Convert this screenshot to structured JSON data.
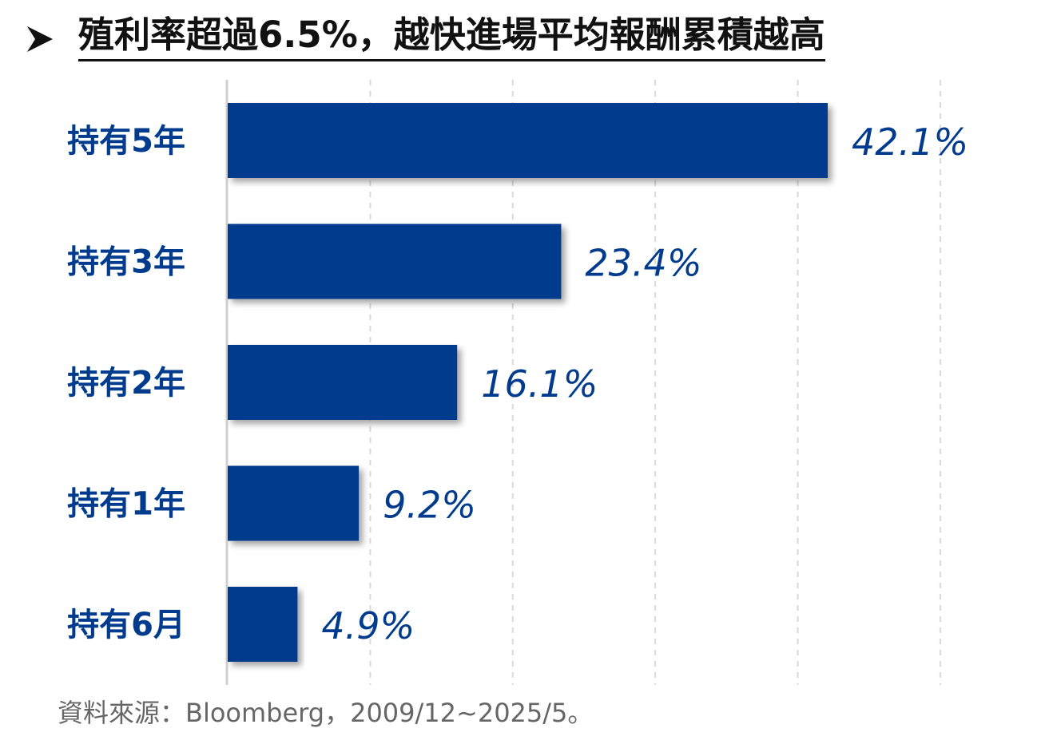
{
  "header": {
    "arrow_icon": "arrow-right-icon",
    "title": "殖利率超過6.5%，越快進場平均報酬累積越高"
  },
  "chart_data": {
    "type": "bar",
    "orientation": "horizontal",
    "categories": [
      "持有5年",
      "持有3年",
      "持有2年",
      "持有1年",
      "持有6月"
    ],
    "values": [
      42.1,
      23.4,
      16.1,
      9.2,
      4.9
    ],
    "value_labels": [
      "42.1%",
      "23.4%",
      "16.1%",
      "9.2%",
      "4.9%"
    ],
    "unit": "%",
    "xlim": [
      0,
      50
    ],
    "grid": true,
    "legend": "none",
    "colors": {
      "bar": "#003b8e",
      "label": "#003b8e",
      "category": "#003b8e",
      "grid": "#d9d9d9",
      "axis": "#d0d0d0"
    }
  },
  "footer": {
    "source": "資料來源：Bloomberg，2009/12~2025/5。"
  }
}
